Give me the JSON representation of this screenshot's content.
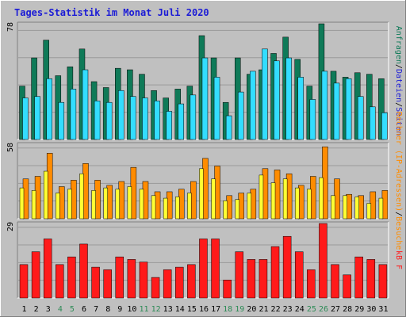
{
  "title": "Tages-Statistik im Monat Juli 2020",
  "colors": {
    "background": "#C0C0C0",
    "title_text": "#1B1BD6",
    "anfragen": "#0F7A58",
    "dateien": "#33DDFF",
    "rechner": "#FF8C00",
    "besuche": "#FFFF33",
    "kbf": "#FF1A1A",
    "weekend_label": "#2E8B57",
    "weekday_label": "#000000"
  },
  "chart_data": [
    {
      "type": "bar",
      "panel": "top",
      "ymax_label": "78",
      "ylim": [
        0,
        78
      ],
      "right_label": {
        "parts": [
          {
            "text": "Anfragen",
            "color": "#0F7A58"
          },
          {
            "text": "/",
            "color": "#000000"
          },
          {
            "text": "Dateien",
            "color": "#1B1BD6"
          },
          {
            "text": "/",
            "color": "#000000"
          },
          {
            "text": "Seiten",
            "color": "#1B1BD6"
          }
        ]
      },
      "categories": [
        "1",
        "2",
        "3",
        "4",
        "5",
        "6",
        "7",
        "8",
        "9",
        "10",
        "11",
        "12",
        "13",
        "14",
        "15",
        "16",
        "17",
        "18",
        "19",
        "20",
        "21",
        "22",
        "23",
        "24",
        "25",
        "26",
        "27",
        "28",
        "29",
        "30",
        "31"
      ],
      "series": [
        {
          "values": [
            36,
            55,
            67,
            43,
            49,
            61,
            39,
            35,
            48,
            47,
            44,
            33,
            28,
            34,
            36,
            70,
            55,
            25,
            55,
            44,
            47,
            58,
            69,
            54,
            36,
            78,
            46,
            42,
            45,
            44,
            41
          ]
        },
        {
          "values": [
            28,
            29,
            41,
            25,
            34,
            47,
            26,
            25,
            33,
            29,
            28,
            26,
            19,
            24,
            30,
            55,
            42,
            16,
            32,
            46,
            61,
            53,
            55,
            42,
            27,
            46,
            38,
            41,
            29,
            22,
            18
          ]
        }
      ]
    },
    {
      "type": "bar",
      "panel": "middle",
      "ymax_label": "58",
      "ylim": [
        0,
        58
      ],
      "right_label": {
        "parts": [
          {
            "text": "Rechner (IP-Adressen)",
            "color": "#FF8C00"
          },
          {
            "text": "/",
            "color": "#000000"
          },
          {
            "text": "Besuche",
            "color": "#FF8C00"
          }
        ]
      },
      "categories": [
        "1",
        "2",
        "3",
        "4",
        "5",
        "6",
        "7",
        "8",
        "9",
        "10",
        "11",
        "12",
        "13",
        "14",
        "15",
        "16",
        "17",
        "18",
        "19",
        "20",
        "21",
        "22",
        "23",
        "24",
        "25",
        "26",
        "27",
        "28",
        "29",
        "30",
        "31"
      ],
      "series": [
        {
          "values": [
            24,
            22,
            37,
            20,
            23,
            35,
            22,
            24,
            23,
            25,
            23,
            18,
            16,
            17,
            20,
            39,
            31,
            14,
            15,
            20,
            34,
            28,
            31,
            24,
            23,
            32,
            18,
            18,
            17,
            12,
            16
          ]
        },
        {
          "values": [
            31,
            33,
            51,
            25,
            30,
            43,
            30,
            26,
            29,
            40,
            29,
            21,
            21,
            23,
            29,
            47,
            41,
            18,
            20,
            23,
            39,
            38,
            35,
            26,
            33,
            56,
            31,
            19,
            18,
            21,
            22
          ]
        }
      ]
    },
    {
      "type": "bar",
      "panel": "bottom",
      "ymax_label": "29",
      "ylim": [
        0,
        29
      ],
      "right_label": {
        "parts": [
          {
            "text": "kB F",
            "color": "#FF1A1A"
          }
        ]
      },
      "categories": [
        "1",
        "2",
        "3",
        "4",
        "5",
        "6",
        "7",
        "8",
        "9",
        "10",
        "11",
        "12",
        "13",
        "14",
        "15",
        "16",
        "17",
        "18",
        "19",
        "20",
        "21",
        "22",
        "23",
        "24",
        "25",
        "26",
        "27",
        "28",
        "29",
        "30",
        "31"
      ],
      "series": [
        {
          "values": [
            13,
            18,
            23,
            13,
            16,
            21,
            12,
            11,
            16,
            15,
            14,
            8,
            11,
            12,
            13,
            23,
            23,
            7,
            18,
            15,
            15,
            20,
            24,
            18,
            11,
            29,
            13,
            9,
            16,
            15,
            13
          ]
        }
      ]
    }
  ],
  "x_labels": [
    {
      "text": "1",
      "weekend": false
    },
    {
      "text": "2",
      "weekend": false
    },
    {
      "text": "3",
      "weekend": false
    },
    {
      "text": "4",
      "weekend": true
    },
    {
      "text": "5",
      "weekend": true
    },
    {
      "text": "6",
      "weekend": false
    },
    {
      "text": "7",
      "weekend": false
    },
    {
      "text": "8",
      "weekend": false
    },
    {
      "text": "9",
      "weekend": false
    },
    {
      "text": "10",
      "weekend": false
    },
    {
      "text": "11",
      "weekend": true
    },
    {
      "text": "12",
      "weekend": true
    },
    {
      "text": "13",
      "weekend": false
    },
    {
      "text": "14",
      "weekend": false
    },
    {
      "text": "15",
      "weekend": false
    },
    {
      "text": "16",
      "weekend": false
    },
    {
      "text": "17",
      "weekend": false
    },
    {
      "text": "18",
      "weekend": true
    },
    {
      "text": "19",
      "weekend": true
    },
    {
      "text": "20",
      "weekend": false
    },
    {
      "text": "21",
      "weekend": false
    },
    {
      "text": "22",
      "weekend": false
    },
    {
      "text": "23",
      "weekend": false
    },
    {
      "text": "24",
      "weekend": false
    },
    {
      "text": "25",
      "weekend": true
    },
    {
      "text": "26",
      "weekend": true
    },
    {
      "text": "27",
      "weekend": false
    },
    {
      "text": "28",
      "weekend": false
    },
    {
      "text": "29",
      "weekend": false
    },
    {
      "text": "30",
      "weekend": false
    },
    {
      "text": "31",
      "weekend": false
    }
  ]
}
